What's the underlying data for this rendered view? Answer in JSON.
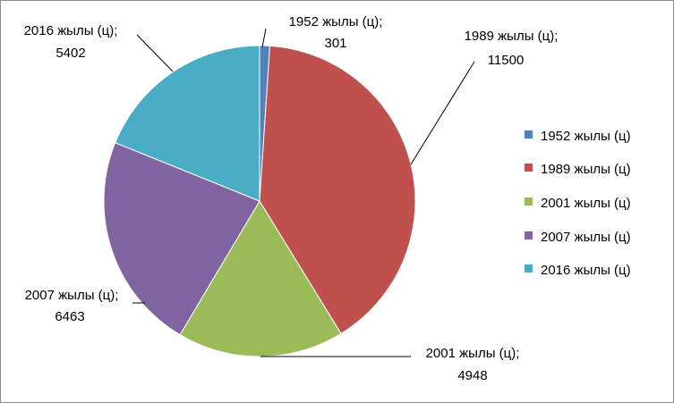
{
  "chart_data": {
    "type": "pie",
    "title": "",
    "legend_position": "right",
    "label_separator": ";",
    "slices": [
      {
        "name": "1952 жылы (ц)",
        "value": 301,
        "color": "#4f81bd"
      },
      {
        "name": "1989 жылы (ц)",
        "value": 11500,
        "color": "#c0504d"
      },
      {
        "name": "2001 жылы (ц)",
        "value": 4948,
        "color": "#9bbb59"
      },
      {
        "name": "2007 жылы (ц)",
        "value": 6463,
        "color": "#8064a2"
      },
      {
        "name": "2016 жылы (ц)",
        "value": 5402,
        "color": "#4bacc6"
      }
    ]
  }
}
